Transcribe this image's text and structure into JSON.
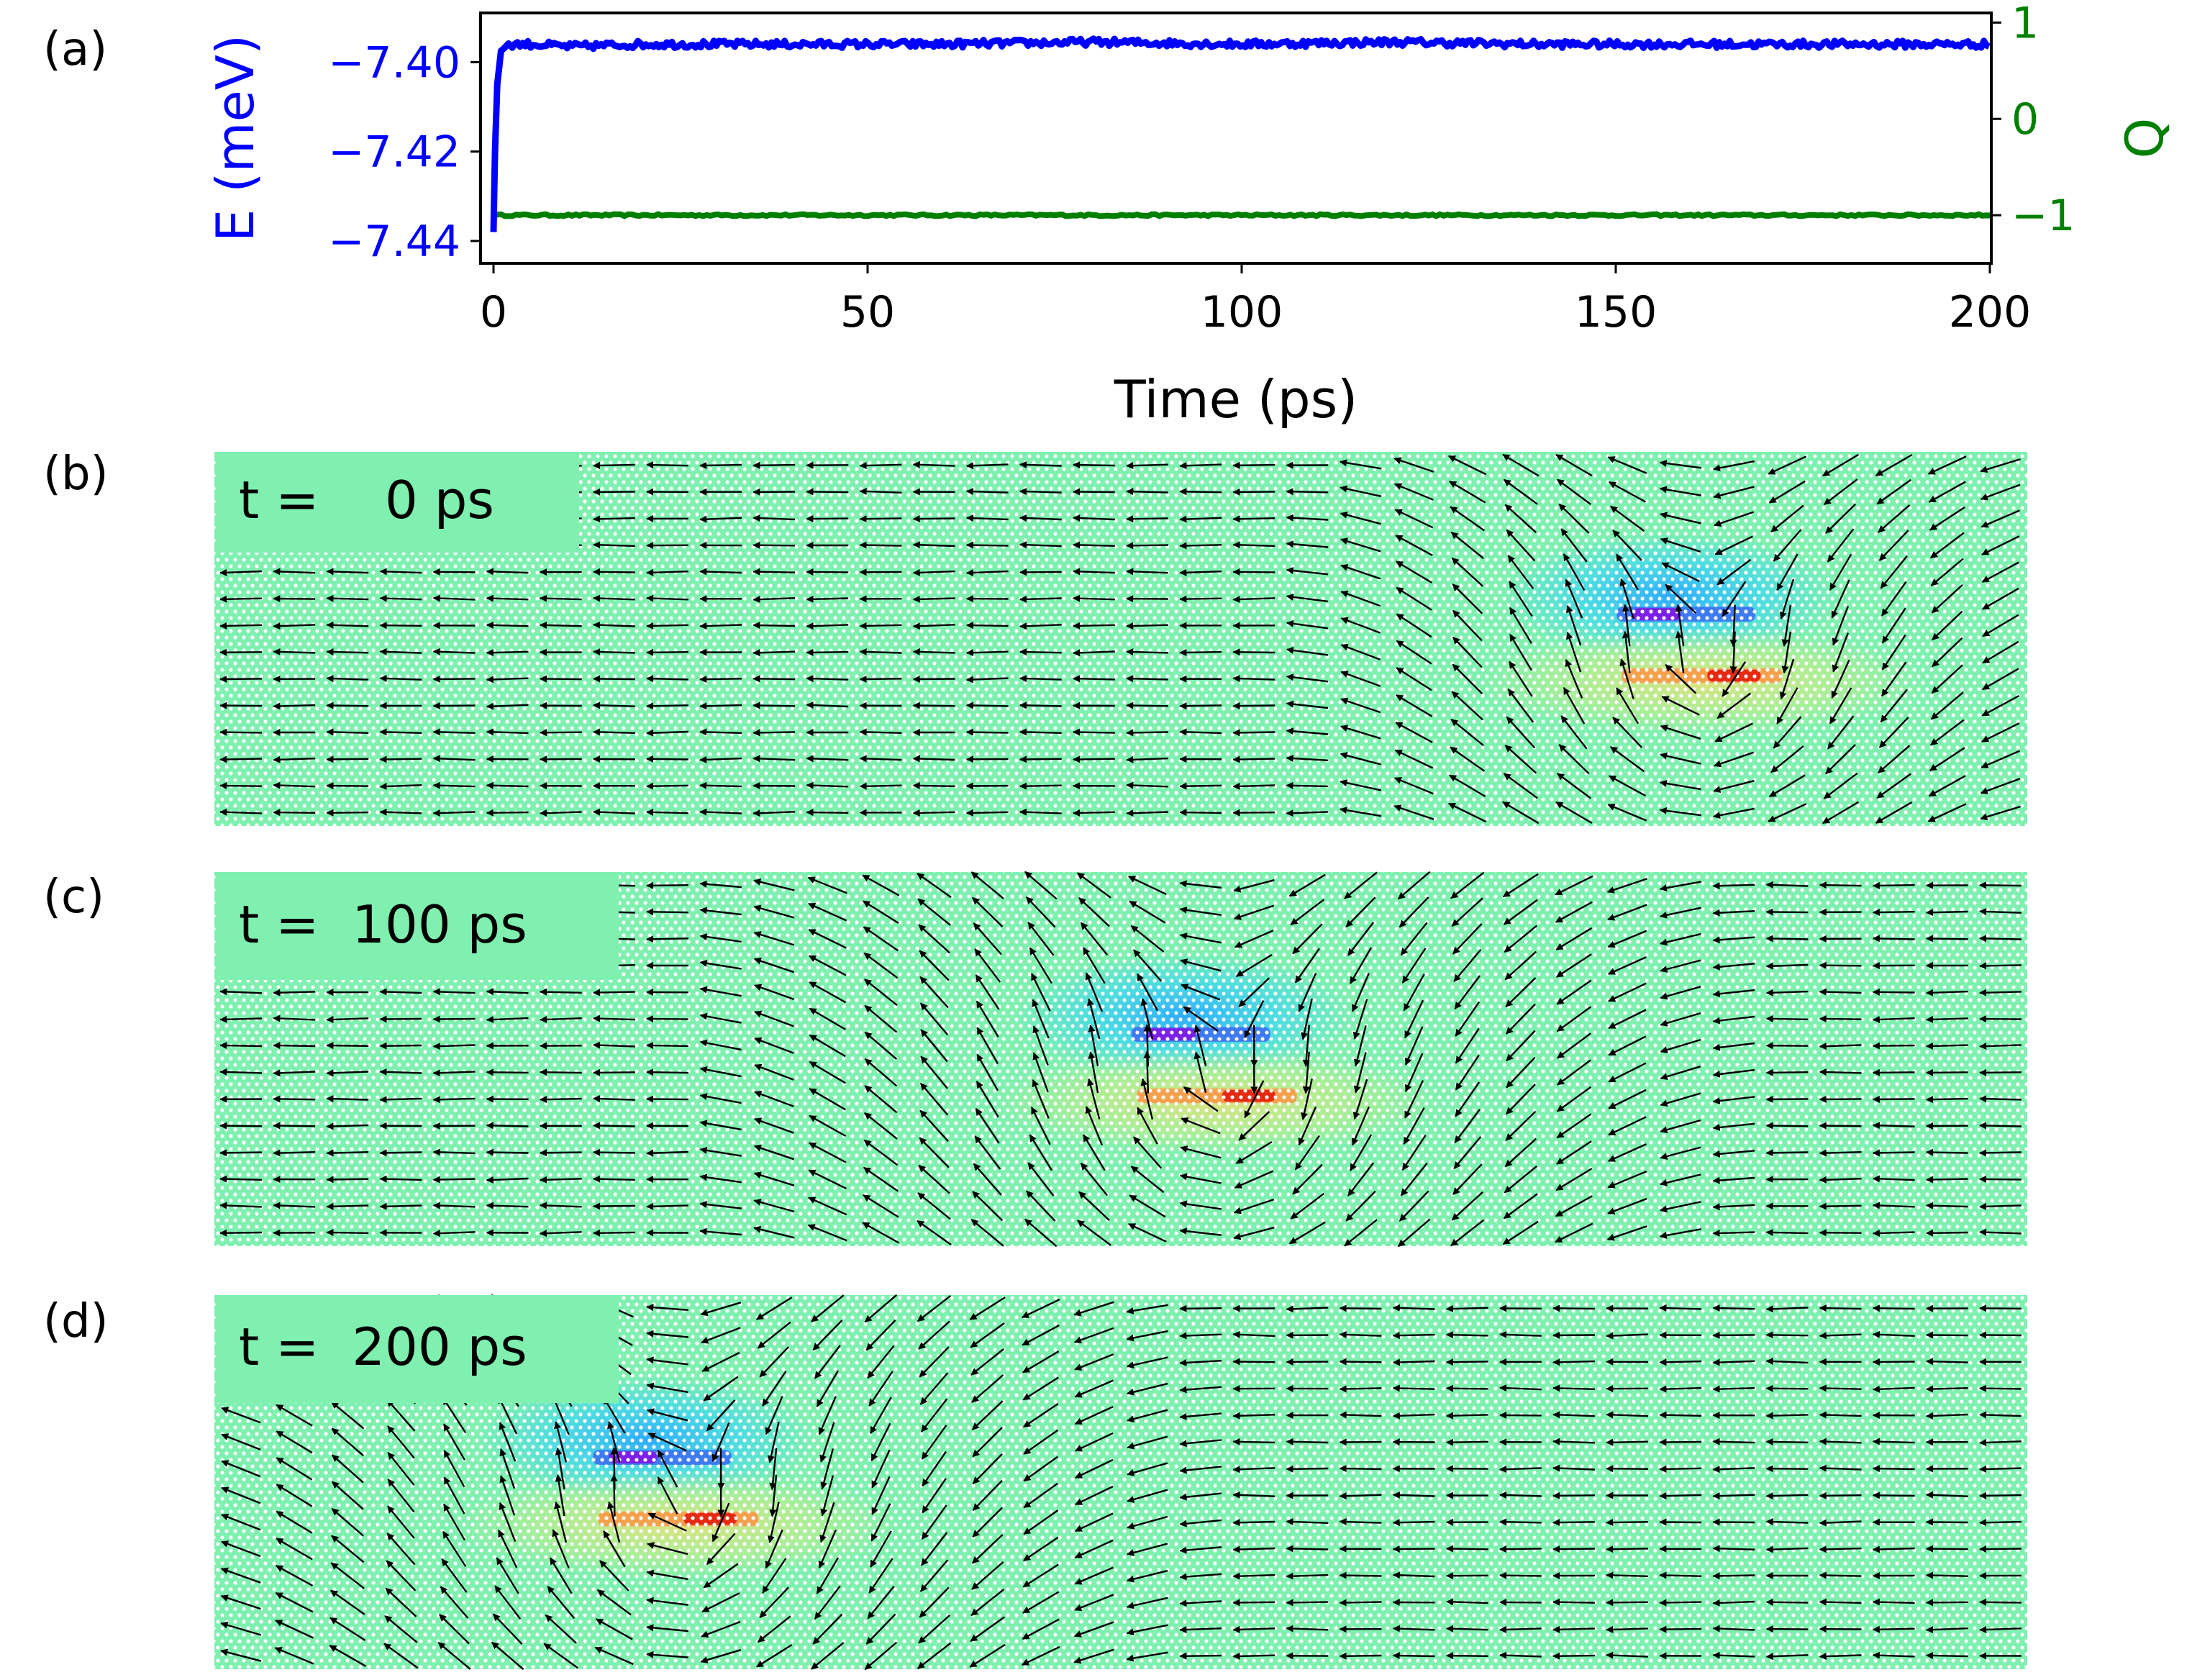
{
  "panels": {
    "a": "(a)",
    "b": "(b)",
    "c": "(c)",
    "d": "(d)"
  },
  "colors": {
    "energy": "#0000ff",
    "charge": "#007f00",
    "axis": "#000000",
    "map_background": "#7ff0b0",
    "map_dots": "#ffffff",
    "arrows": "#000000",
    "time_box": "#7ff0b0"
  },
  "chart_data": [
    {
      "type": "line",
      "xlabel": "Time (ps)",
      "ylabel": "E (meV)",
      "y2label": "Q",
      "xlim": [
        0,
        200
      ],
      "ylim": [
        -7.445,
        -7.389
      ],
      "y2lim": [
        -1.5,
        1.1
      ],
      "xticks": [
        "0",
        "50",
        "100",
        "150",
        "200"
      ],
      "yticks": [
        "−7.40",
        "−7.42",
        "−7.44"
      ],
      "y2ticks": [
        "1",
        "0",
        "−1"
      ],
      "series": [
        {
          "name": "E (meV)",
          "axis": "left",
          "color": "#0000ff",
          "x": [
            0,
            0.2,
            0.5,
            1,
            2,
            5,
            10,
            20,
            40,
            60,
            80,
            100,
            120,
            140,
            160,
            180,
            200
          ],
          "y": [
            -7.438,
            -7.42,
            -7.405,
            -7.3975,
            -7.396,
            -7.396,
            -7.3965,
            -7.396,
            -7.396,
            -7.396,
            -7.3955,
            -7.396,
            -7.3955,
            -7.396,
            -7.396,
            -7.396,
            -7.396
          ]
        },
        {
          "name": "Q",
          "axis": "right",
          "color": "#007f00",
          "x": [
            0,
            50,
            100,
            150,
            200
          ],
          "y": [
            -1,
            -1,
            -1,
            -1,
            -1
          ]
        }
      ]
    },
    {
      "type": "heatmap",
      "panel": "b",
      "time_label": "t =    0 ps",
      "grid": {
        "cols": 34,
        "rows": 14
      },
      "defect_center_col": 27.4,
      "defect_center_row": 6.5,
      "vortex_radius_cols": 5
    },
    {
      "type": "heatmap",
      "panel": "c",
      "time_label": "t =  100 ps",
      "grid": {
        "cols": 34,
        "rows": 14
      },
      "defect_center_col": 18.3,
      "defect_center_row": 6.5,
      "vortex_radius_cols": 6.5
    },
    {
      "type": "heatmap",
      "panel": "d",
      "time_label": "t =  200 ps",
      "grid": {
        "cols": 34,
        "rows": 14
      },
      "defect_center_col": 8.2,
      "defect_center_row": 6.5,
      "vortex_radius_cols": 6.5
    }
  ]
}
